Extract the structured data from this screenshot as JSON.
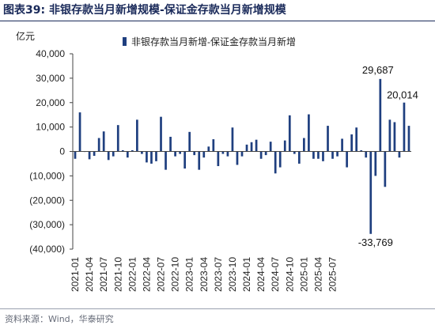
{
  "figure": {
    "label": "图表39:",
    "title": "非银存款当月新增规模-保证金存款当月新增规模",
    "source": "资料来源：Wind，华泰研究"
  },
  "chart_data": {
    "type": "bar",
    "ylabel": "亿元",
    "ylim": [
      -40000,
      40000
    ],
    "yticks": [
      40000,
      30000,
      20000,
      10000,
      0,
      -10000,
      -20000,
      -30000,
      -40000
    ],
    "ytick_labels": [
      "40,000",
      "30,000",
      "20,000",
      "10,000",
      "0",
      "(10,000)",
      "(20,000)",
      "(30,000)",
      "(40,000)"
    ],
    "x_tick_labels": [
      "2021-01",
      "2021-04",
      "2021-07",
      "2021-10",
      "2022-01",
      "2022-04",
      "2022-07",
      "2022-10",
      "2023-01",
      "2023-04",
      "2023-07",
      "2023-10",
      "2024-01",
      "2024-04",
      "2024-07",
      "2024-10",
      "2025-01",
      "2025-04",
      "2025-07"
    ],
    "grid": false,
    "legend": "top-right",
    "color": "#1f3f7f",
    "series": [
      {
        "name": "非银存款当月新增-保证金存款当月新增",
        "values": [
          -3000,
          16000,
          -200,
          -3200,
          -1800,
          5500,
          8200,
          -3500,
          -2000,
          10800,
          500,
          -2500,
          500,
          13000,
          -1000,
          -4500,
          -5000,
          -4000,
          14200,
          -7500,
          6000,
          -2000,
          -1000,
          -7000,
          8000,
          -1500,
          -7500,
          -2500,
          2000,
          5000,
          -6000,
          -1000,
          -2000,
          9800,
          -5500,
          -2000,
          2800,
          3800,
          4800,
          -3000,
          -1500,
          4000,
          -9000,
          -6500,
          4500,
          14800,
          -1000,
          -5000,
          5500,
          15200,
          -3000,
          -3000,
          -4000,
          10500,
          -3000,
          -2000,
          5200,
          -6500,
          7000,
          9800,
          500,
          -2500,
          -33769,
          -10000,
          29687,
          -14500,
          13000,
          12000,
          -2500,
          20014,
          10500
        ],
        "data_labels": [
          {
            "index": 62,
            "text": "-33,769"
          },
          {
            "index": 64,
            "text": "29,687"
          },
          {
            "index": 69,
            "text": "20,014"
          }
        ]
      }
    ]
  }
}
